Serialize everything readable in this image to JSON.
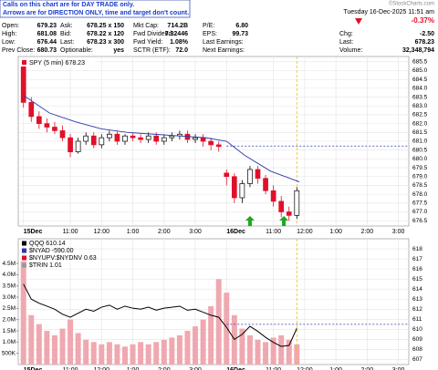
{
  "header": {
    "notice": [
      "Calls on this chart are for DAY TRADE only.",
      "Arrows are for DIRECTION ONLY, time and target don't count."
    ],
    "quote": [
      [
        [
          "Open:",
          "679.23"
        ],
        [
          "Ask:",
          "678.25 x 150"
        ],
        [
          "Mkt Cap:",
          "714.2B"
        ],
        [
          "P/E:",
          "6.80"
        ]
      ],
      [
        [
          "High:",
          "681.08"
        ],
        [
          "Bid:",
          "678.22 x 120"
        ],
        [
          "Fwd Dividend:",
          "7.32446"
        ],
        [
          "EPS:",
          "99.73"
        ]
      ],
      [
        [
          "Low:",
          "676.44"
        ],
        [
          "Last:",
          "678.23 x 300"
        ],
        [
          "Fwd Yield:",
          "1.08%"
        ],
        [
          "Last Earnings:"
        ]
      ],
      [
        [
          "Prev Close:",
          "680.73"
        ],
        [
          "Optionable:",
          "yes"
        ],
        [
          "SCTR (ETF):",
          "72.0"
        ],
        [
          "Next Earnings:"
        ]
      ]
    ],
    "source": "©StockCharts.com",
    "timestamp": "Tuesday 16-Dec-2025 11:51 am",
    "change_pct": "-0.37%",
    "stats": [
      [
        "Chg:",
        "-2.50"
      ],
      [
        "Last:",
        "678.23"
      ],
      [
        "Volume:",
        "32,348,794"
      ]
    ]
  },
  "chart_data": [
    {
      "type": "candlestick",
      "legend": "SPY (5 min) 678.23",
      "x": [
        0,
        3,
        6,
        9,
        12,
        15,
        18,
        21,
        24,
        27,
        30,
        33,
        36,
        39,
        42,
        45,
        48,
        51,
        54,
        57,
        60,
        63,
        66,
        69,
        72,
        75,
        78,
        81,
        84,
        87,
        90,
        93,
        96,
        99,
        102,
        105
      ],
      "open": [
        685.4,
        683.2,
        682.4,
        682.0,
        681.8,
        681.6,
        681.2,
        680.4,
        681.0,
        681.3,
        680.8,
        681.2,
        681.4,
        681.0,
        681.3,
        681.2,
        681.1,
        681.3,
        681.0,
        681.2,
        681.3,
        681.4,
        681.1,
        681.2,
        681.0,
        680.8,
        679.2,
        679.0,
        677.8,
        678.6,
        679.4,
        678.9,
        678.2,
        677.6,
        677.0,
        676.8
      ],
      "high": [
        685.6,
        683.5,
        682.7,
        682.3,
        682.1,
        681.9,
        681.4,
        681.2,
        681.5,
        681.5,
        681.4,
        681.6,
        681.6,
        681.4,
        681.5,
        681.4,
        681.5,
        681.5,
        681.4,
        681.5,
        681.6,
        681.6,
        681.4,
        681.4,
        681.2,
        681.0,
        679.4,
        679.2,
        678.8,
        679.6,
        679.6,
        679.1,
        678.5,
        677.9,
        677.3,
        678.4
      ],
      "low": [
        682.9,
        682.1,
        681.7,
        681.5,
        681.4,
        681.0,
        680.1,
        680.3,
        680.8,
        680.6,
        680.6,
        681.0,
        680.8,
        680.8,
        681.0,
        680.9,
        680.9,
        680.8,
        680.8,
        681.0,
        681.1,
        680.9,
        680.9,
        680.7,
        680.5,
        680.4,
        678.5,
        677.5,
        677.5,
        678.4,
        678.6,
        678.0,
        677.3,
        676.7,
        676.5,
        676.6
      ],
      "close": [
        683.2,
        682.4,
        682.0,
        681.8,
        681.6,
        681.2,
        680.4,
        681.0,
        681.3,
        680.8,
        681.2,
        681.4,
        681.0,
        681.3,
        681.2,
        681.1,
        681.3,
        681.0,
        681.2,
        681.3,
        681.4,
        681.1,
        681.2,
        681.0,
        680.8,
        680.7,
        679.0,
        677.8,
        678.6,
        679.4,
        678.9,
        678.2,
        677.6,
        677.0,
        676.8,
        678.2
      ],
      "up_color": "#000000",
      "down_color": "#e0102a",
      "ma_x": [
        0,
        10,
        20,
        30,
        40,
        50,
        60,
        70,
        78,
        85,
        95,
        106
      ],
      "ma_values": [
        683.6,
        682.6,
        682.1,
        681.7,
        681.5,
        681.4,
        681.3,
        681.2,
        681.0,
        680.2,
        679.3,
        678.7
      ],
      "ma_color": "#2b3aa8",
      "reference_line": 680.73,
      "marker_x": 105,
      "arrows_x": [
        87,
        100
      ],
      "xlim": [
        -2,
        148
      ],
      "xticks": [
        {
          "value": 0,
          "label": "15Dec"
        },
        {
          "value": 18,
          "label": "11:00"
        },
        {
          "value": 30,
          "label": "12:00"
        },
        {
          "value": 42,
          "label": "1:00"
        },
        {
          "value": 54,
          "label": "2:00"
        },
        {
          "value": 66,
          "label": "3:00"
        },
        {
          "value": 78,
          "label": "16Dec"
        },
        {
          "value": 96,
          "label": "11:00"
        },
        {
          "value": 108,
          "label": "12:00"
        },
        {
          "value": 120,
          "label": "1:00"
        },
        {
          "value": 132,
          "label": "2:00"
        },
        {
          "value": 144,
          "label": "3:00"
        }
      ],
      "ylim": [
        676.2,
        685.8
      ],
      "yticks": [
        676.5,
        {
          "value": 677,
          "label": "677.0"
        },
        677.5,
        {
          "value": 678,
          "label": "678.0"
        },
        678.5,
        {
          "value": 679,
          "label": "679.0"
        },
        679.5,
        {
          "value": 680,
          "label": "680.0"
        },
        680.5,
        {
          "value": 681,
          "label": "681.0"
        },
        681.5,
        {
          "value": 682,
          "label": "682.0"
        },
        682.5,
        {
          "value": 683,
          "label": "683.0"
        },
        683.5,
        {
          "value": 684,
          "label": "684.0"
        },
        684.5,
        {
          "value": 685,
          "label": "685.0"
        },
        685.5
      ],
      "grid": true
    },
    {
      "type": "line",
      "legend": [
        "QQQ 610.14",
        "$NYAD -590.00",
        "$NYUPV:$NYDNV 0.63",
        "$TRIN 1.01"
      ],
      "legend_colors": [
        "#000000",
        "#2b3aa8",
        "#e0102a",
        "#999999"
      ],
      "x": [
        0,
        3,
        6,
        9,
        12,
        15,
        18,
        21,
        24,
        27,
        30,
        33,
        36,
        39,
        42,
        45,
        48,
        51,
        54,
        57,
        60,
        63,
        66,
        69,
        72,
        75,
        78,
        81,
        84,
        87,
        90,
        93,
        96,
        99,
        102,
        105
      ],
      "series": [
        {
          "name": "QQQ 610.14",
          "color": "#000000",
          "values": [
            614.5,
            613.0,
            612.6,
            612.3,
            612.0,
            611.5,
            611.2,
            611.6,
            612.0,
            611.8,
            612.2,
            612.4,
            612.0,
            612.3,
            612.1,
            612.0,
            612.2,
            611.9,
            612.1,
            612.2,
            612.3,
            611.9,
            612.0,
            611.7,
            611.4,
            611.2,
            610.2,
            609.0,
            609.5,
            610.3,
            609.8,
            609.2,
            608.7,
            608.3,
            608.4,
            610.1
          ]
        },
        {
          "color": "#f0a8b0",
          "axis": "y2",
          "values": [
            4600000,
            2200000,
            1800000,
            1500000,
            1300000,
            1600000,
            2000000,
            1400000,
            1100000,
            1000000,
            900000,
            1000000,
            900000,
            800000,
            900000,
            1000000,
            900000,
            1000000,
            1100000,
            1200000,
            1300000,
            1500000,
            1700000,
            2000000,
            2600000,
            3800000,
            3200000,
            2200000,
            1600000,
            1300000,
            1100000,
            1000000,
            1200000,
            1300000,
            1100000,
            900000
          ]
        }
      ],
      "reference_line": 610.5,
      "marker_x": 105,
      "xlim": [
        -2,
        148
      ],
      "xticks": [
        {
          "value": 0,
          "label": "15Dec"
        },
        {
          "value": 18,
          "label": "11:00"
        },
        {
          "value": 30,
          "label": "12:00"
        },
        {
          "value": 42,
          "label": "1:00"
        },
        {
          "value": 54,
          "label": "2:00"
        },
        {
          "value": 66,
          "label": "3:00"
        },
        {
          "value": 78,
          "label": "16Dec"
        },
        {
          "value": 96,
          "label": "11:00"
        },
        {
          "value": 108,
          "label": "12:00"
        },
        {
          "value": 120,
          "label": "1:00"
        },
        {
          "value": 132,
          "label": "2:00"
        },
        {
          "value": 144,
          "label": "3:00"
        }
      ],
      "ylim": [
        606.5,
        619
      ],
      "yticks": [
        607,
        608,
        609,
        610,
        611,
        612,
        613,
        614,
        615,
        616,
        617,
        618
      ],
      "y2lim": [
        0,
        5600000
      ],
      "y2ticks": [
        {
          "value": 500000,
          "label": "500K"
        },
        {
          "value": 1000000,
          "label": "1.0M"
        },
        {
          "value": 1500000,
          "label": "1.5M"
        },
        {
          "value": 2000000,
          "label": "2.0M"
        },
        {
          "value": 2500000,
          "label": "2.5M"
        },
        {
          "value": 3000000,
          "label": "3.0M"
        },
        {
          "value": 3500000,
          "label": "3.5M"
        },
        {
          "value": 4000000,
          "label": "4.0M"
        },
        {
          "value": 4500000,
          "label": "4.5M"
        }
      ],
      "grid": true
    }
  ]
}
